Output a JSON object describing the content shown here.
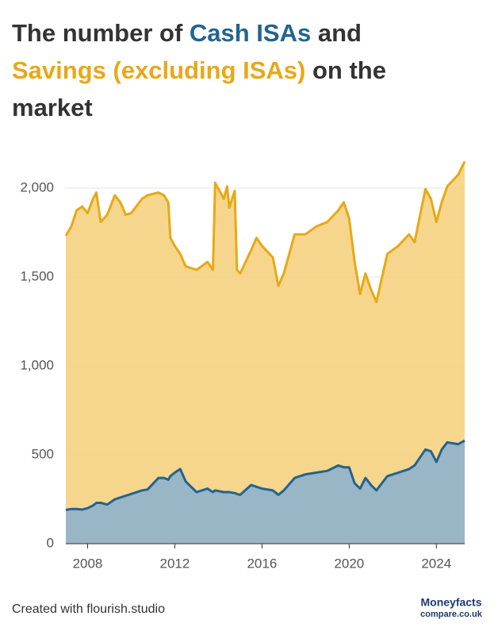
{
  "chart_data": {
    "type": "area",
    "title_text": [
      "The number of ",
      " and",
      " on the",
      "market"
    ],
    "x": [
      2007,
      2007.25,
      2007.5,
      2007.75,
      2008,
      2008.25,
      2008.4,
      2008.6,
      2008.9,
      2009.25,
      2009.5,
      2009.75,
      2010,
      2010.5,
      2010.75,
      2011.25,
      2011.5,
      2011.7,
      2011.8,
      2012,
      2012.25,
      2012.5,
      2013,
      2013.5,
      2013.75,
      2013.85,
      2014.25,
      2014.4,
      2014.5,
      2014.75,
      2014.85,
      2015,
      2015.5,
      2015.75,
      2016,
      2016.5,
      2016.75,
      2017,
      2017.5,
      2018,
      2018.5,
      2019,
      2019.5,
      2019.75,
      2020,
      2020.25,
      2020.5,
      2020.75,
      2021,
      2021.25,
      2021.75,
      2022.25,
      2022.75,
      2023,
      2023.5,
      2023.75,
      2024,
      2024.25,
      2024.5,
      2025,
      2025.3
    ],
    "series": [
      {
        "name": "Savings (excluding ISAs)",
        "color": "#e8a817",
        "fill": "#f5d281",
        "values": [
          1732,
          1785,
          1875,
          1897,
          1860,
          1940,
          1975,
          1810,
          1850,
          1960,
          1920,
          1850,
          1860,
          1940,
          1960,
          1975,
          1960,
          1920,
          1720,
          1675,
          1630,
          1560,
          1540,
          1585,
          1540,
          2030,
          1940,
          2010,
          1890,
          1985,
          1540,
          1520,
          1650,
          1720,
          1675,
          1610,
          1450,
          1520,
          1740,
          1740,
          1785,
          1810,
          1875,
          1920,
          1830,
          1585,
          1405,
          1520,
          1430,
          1360,
          1630,
          1675,
          1740,
          1695,
          1995,
          1940,
          1810,
          1920,
          2010,
          2075,
          2150
        ]
      },
      {
        "name": "Cash ISAs",
        "color": "#22648f",
        "fill": "#8fb3cc",
        "values": [
          190,
          195,
          195,
          192,
          200,
          215,
          230,
          230,
          220,
          250,
          260,
          270,
          280,
          300,
          305,
          370,
          370,
          360,
          380,
          400,
          420,
          350,
          290,
          310,
          290,
          300,
          290,
          290,
          290,
          285,
          280,
          275,
          330,
          320,
          310,
          300,
          275,
          300,
          370,
          390,
          400,
          410,
          440,
          430,
          430,
          340,
          310,
          370,
          330,
          300,
          380,
          400,
          420,
          440,
          530,
          520,
          460,
          530,
          570,
          560,
          580
        ]
      }
    ],
    "xlim": [
      2007,
      2025.3
    ],
    "xticks": [
      2008,
      2012,
      2016,
      2020,
      2024
    ],
    "ylim": [
      0,
      2200
    ],
    "yticks": [
      0,
      500,
      {
        "value": 1000,
        "label": "1,000"
      },
      {
        "value": 1500,
        "label": "1,500"
      },
      {
        "value": 2000,
        "label": "2,000"
      }
    ],
    "grid": true
  },
  "footer": {
    "credit": "Created with flourish.studio",
    "logo_top": "Moneyfacts",
    "logo_bottom": "compare.co.uk"
  }
}
